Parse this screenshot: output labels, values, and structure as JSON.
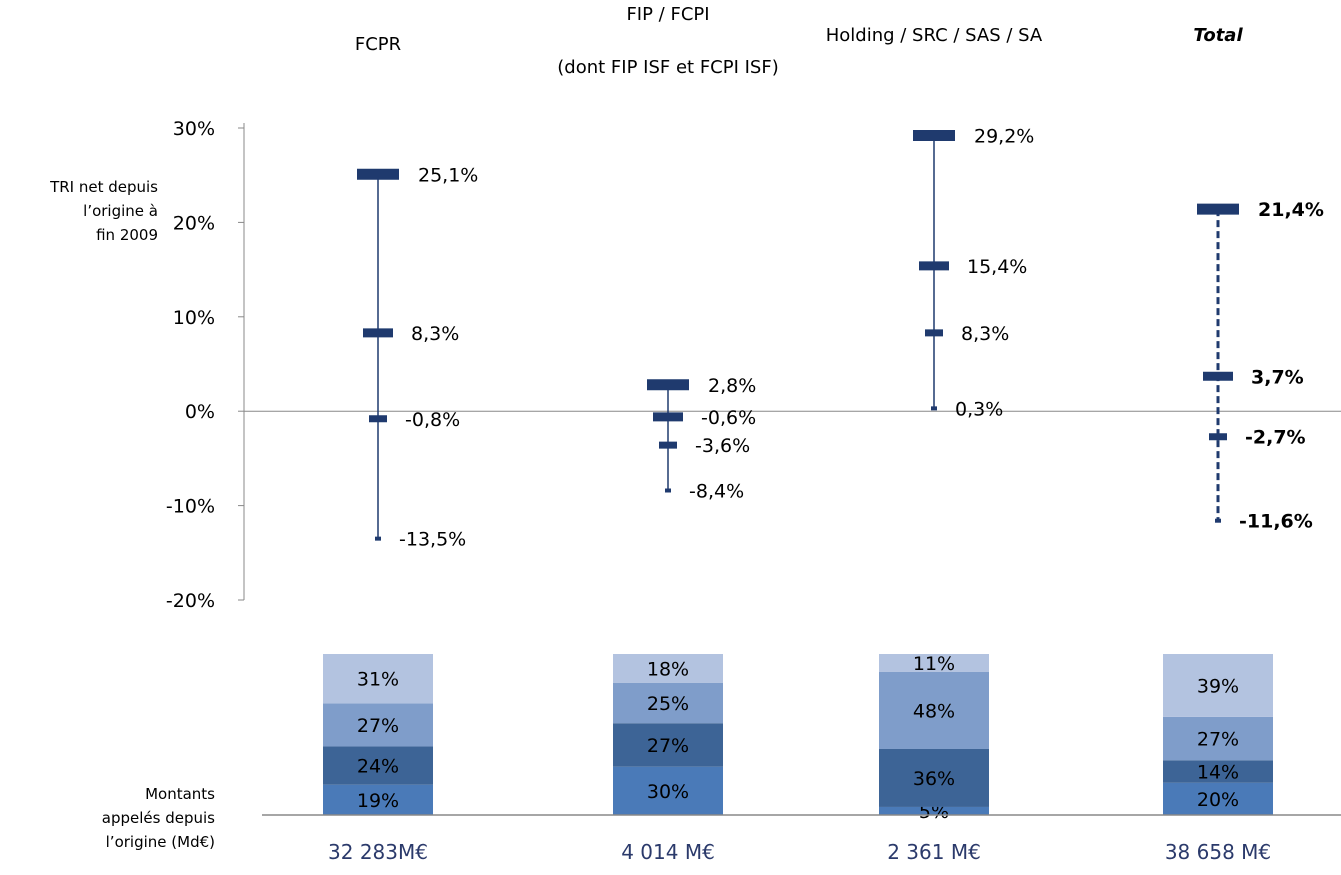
{
  "chart_data": {
    "type": "range",
    "categories": [
      {
        "label": "FCPR",
        "label_lines": [
          "FCPR"
        ],
        "bold": false,
        "italic": false,
        "dashed": false
      },
      {
        "label": "FIP / FCPI (dont FIP ISF et FCPI ISF)",
        "label_lines": [
          "FIP / FCPI",
          "(dont FIP ISF et FCPI ISF)"
        ],
        "bold": false,
        "italic": false,
        "dashed": false
      },
      {
        "label": "Holding / SRC / SAS / SA",
        "label_lines": [
          "Holding / SRC / SAS / SA"
        ],
        "bold": false,
        "italic": false,
        "dashed": false
      },
      {
        "label": "Total",
        "label_lines": [
          "Total"
        ],
        "bold": true,
        "italic": true,
        "dashed": true
      }
    ],
    "ylabel_lines": [
      "TRI net depuis",
      "l’origine à",
      "fin 2009"
    ],
    "ylim": [
      -20,
      30
    ],
    "yticks": [
      30,
      20,
      10,
      0,
      -10,
      -20
    ],
    "ytick_labels": [
      "30%",
      "20%",
      "10%",
      "0%",
      "-10%",
      "-20%"
    ],
    "series": [
      {
        "name": "",
        "values": [
          25.1,
          2.8,
          29.2,
          21.4
        ],
        "labels": [
          "25,1%",
          "2,8%",
          "29,2%",
          "21,4%"
        ],
        "weight": 4
      },
      {
        "name": "",
        "values": [
          8.3,
          -0.6,
          15.4,
          3.7
        ],
        "labels": [
          "8,3%",
          "-0,6%",
          "15,4%",
          "3,7%"
        ],
        "weight": 3
      },
      {
        "name": "",
        "values": [
          -0.8,
          -3.6,
          8.3,
          -2.7
        ],
        "labels": [
          "-0,8%",
          "-3,6%",
          "8,3%",
          "-2,7%"
        ],
        "weight": 2
      },
      {
        "name": "",
        "values": [
          -13.5,
          -8.4,
          0.3,
          -11.6
        ],
        "labels": [
          "-13,5%",
          "-8,4%",
          "0,3%",
          "-11,6%"
        ],
        "weight": 1
      }
    ],
    "stacked_bars": {
      "axis_label_lines": [
        "Montants",
        "appelés depuis",
        "l’origine (Md€)"
      ],
      "segment_colors": [
        "#4a7ab8",
        "#3d6496",
        "#7f9dca",
        "#b3c3e0"
      ],
      "segments": [
        [
          {
            "value": 19,
            "label": "19%"
          },
          {
            "value": 24,
            "label": "24%"
          },
          {
            "value": 27,
            "label": "27%"
          },
          {
            "value": 31,
            "label": "31%"
          }
        ],
        [
          {
            "value": 30,
            "label": "30%"
          },
          {
            "value": 27,
            "label": "27%"
          },
          {
            "value": 25,
            "label": "25%"
          },
          {
            "value": 18,
            "label": "18%"
          }
        ],
        [
          {
            "value": 5,
            "label": "5%"
          },
          {
            "value": 36,
            "label": "36%"
          },
          {
            "value": 48,
            "label": "48%"
          },
          {
            "value": 11,
            "label": "11%"
          }
        ],
        [
          {
            "value": 20,
            "label": "20%"
          },
          {
            "value": 14,
            "label": "14%"
          },
          {
            "value": 27,
            "label": "27%"
          },
          {
            "value": 39,
            "label": "39%"
          }
        ]
      ],
      "totals": [
        "32 283M€",
        "4 014 M€",
        "2 361 M€",
        "38 658 M€"
      ]
    },
    "colors": {
      "range": "#1f3a6e",
      "axis": "#888888",
      "text": "#000000",
      "total_text": "#2b3a6b"
    }
  }
}
